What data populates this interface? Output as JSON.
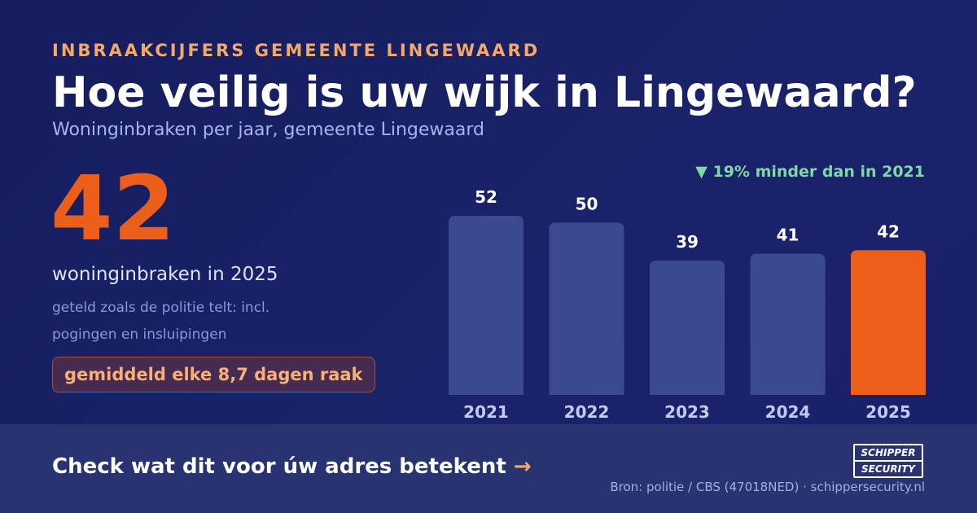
{
  "header": {
    "eyebrow": "INBRAAKCIJFERS GEMEENTE LINGEWAARD",
    "title": "Hoe veilig is uw wijk in Lingewaard?",
    "subtitle": "Woninginbraken per jaar, gemeente Lingewaard"
  },
  "highlight": {
    "number": "42",
    "label": "woninginbraken in 2025",
    "note": "geteld zoals de politie telt: incl. pogingen en insluipingen",
    "pill": "gemiddeld elke 8,7 dagen raak"
  },
  "change": {
    "icon": "triangle-down-icon",
    "text": "▼ 19% minder dan in 2021",
    "color": "#7fd8a6"
  },
  "chart_data": {
    "type": "bar",
    "categories": [
      "2021",
      "2022",
      "2023",
      "2024",
      "2025"
    ],
    "values": [
      52,
      50,
      39,
      41,
      42
    ],
    "ylim": [
      0,
      60
    ],
    "grid": false,
    "bar_color": "#3b4990",
    "highlight_index": 4,
    "highlight_color": "#ec5f1a"
  },
  "footer": {
    "cta": "Check wat dit voor úw adres betekent",
    "cta_arrow": "→",
    "logo_line1": "SCHIPPER",
    "logo_line2": "SECURITY",
    "source": "Bron: politie / CBS (47018NED) · schippersecurity.nl"
  },
  "colors": {
    "background": "#1a2369",
    "accent": "#ec5f1a",
    "eyebrow": "#f4a86b",
    "footer_bg": "#283371"
  }
}
